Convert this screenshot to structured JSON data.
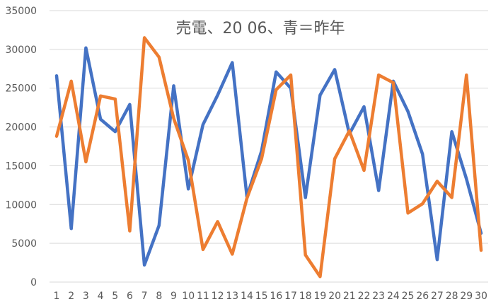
{
  "chart_data": {
    "type": "line",
    "title": "売電、20 06、青＝昨年",
    "xlabel": "",
    "ylabel": "",
    "x": [
      1,
      2,
      3,
      4,
      5,
      6,
      7,
      8,
      9,
      10,
      11,
      12,
      13,
      14,
      15,
      16,
      17,
      18,
      19,
      20,
      21,
      22,
      23,
      24,
      25,
      26,
      27,
      28,
      29,
      30
    ],
    "x_labels": [
      "1",
      "2",
      "3",
      "4",
      "5",
      "6",
      "7",
      "8",
      "9",
      "10",
      "11",
      "12",
      "13",
      "14",
      "15",
      "16",
      "17",
      "18",
      "19",
      "20",
      "21",
      "22",
      "23",
      "24",
      "25",
      "26",
      "27",
      "28",
      "29",
      "30"
    ],
    "y_ticks": [
      0,
      5000,
      10000,
      15000,
      20000,
      25000,
      30000,
      35000
    ],
    "y_tick_labels": [
      "0",
      "5000",
      "10000",
      "15000",
      "20000",
      "25000",
      "30000",
      "35000"
    ],
    "ylim": [
      0,
      35000
    ],
    "grid": "horizontal",
    "legend": "none",
    "series": [
      {
        "name": "",
        "color": "#4472c4",
        "values": [
          26600,
          6900,
          30200,
          21000,
          19400,
          22900,
          2200,
          7300,
          25300,
          12000,
          20300,
          24100,
          28300,
          11000,
          16900,
          27100,
          25000,
          10900,
          24100,
          27400,
          19100,
          22600,
          11800,
          25900,
          22000,
          16500,
          2900,
          19400,
          13300,
          6300
        ]
      },
      {
        "name": "",
        "color": "#ed7d31",
        "values": [
          18800,
          25900,
          15500,
          24000,
          23600,
          6600,
          31500,
          29000,
          21100,
          15700,
          4200,
          7800,
          3600,
          10800,
          15900,
          24800,
          26700,
          3500,
          700,
          15900,
          19500,
          14400,
          26700,
          25700,
          8900,
          10100,
          13000,
          10900,
          26700,
          4100
        ]
      }
    ],
    "gridline_color": "#d9d9d9"
  }
}
